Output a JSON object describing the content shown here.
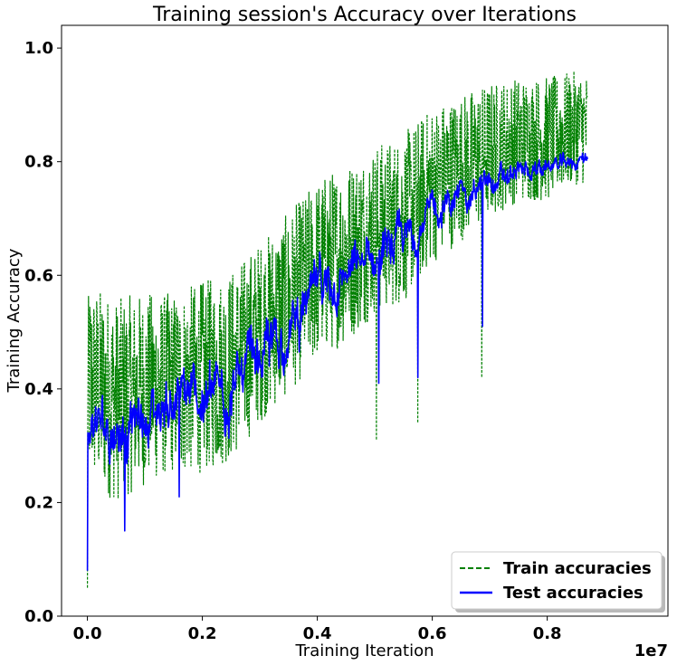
{
  "chart_data": {
    "type": "line",
    "title": "Training session's Accuracy over Iterations",
    "xlabel": "Training Iteration",
    "ylabel": "Training Accuracy",
    "x_offset_label": "1e7",
    "xlim": [
      -0.045,
      1.01
    ],
    "ylim": [
      0.0,
      1.04
    ],
    "xticks": [
      0.0,
      0.2,
      0.4,
      0.6,
      0.8
    ],
    "xtick_labels": [
      "0.0",
      "0.2",
      "0.4",
      "0.6",
      "0.8"
    ],
    "yticks": [
      0.0,
      0.2,
      0.4,
      0.6,
      0.8,
      1.0
    ],
    "ytick_labels": [
      "0.0",
      "0.2",
      "0.4",
      "0.6",
      "0.8",
      "1.0"
    ],
    "grid": false,
    "legend_position": "bottom-right",
    "series": [
      {
        "name": "Train accuracies",
        "color": "#008000",
        "style": "dashed",
        "x": [
          0.0,
          0.005,
          0.05,
          0.1,
          0.15,
          0.2,
          0.25,
          0.3,
          0.35,
          0.4,
          0.45,
          0.5,
          0.55,
          0.6,
          0.65,
          0.7,
          0.75,
          0.8,
          0.85,
          0.87
        ],
        "center": [
          0.4,
          0.41,
          0.38,
          0.4,
          0.41,
          0.42,
          0.44,
          0.5,
          0.55,
          0.61,
          0.64,
          0.68,
          0.7,
          0.76,
          0.79,
          0.82,
          0.84,
          0.84,
          0.86,
          0.86
        ],
        "spread": [
          0.15,
          0.18,
          0.18,
          0.17,
          0.16,
          0.17,
          0.17,
          0.16,
          0.16,
          0.16,
          0.16,
          0.15,
          0.15,
          0.14,
          0.13,
          0.12,
          0.11,
          0.11,
          0.1,
          0.1
        ],
        "min": 0.05,
        "max": 1.0,
        "dips": [
          {
            "x": 0.503,
            "y": 0.31
          },
          {
            "x": 0.575,
            "y": 0.34
          },
          {
            "x": 0.686,
            "y": 0.42
          },
          {
            "x": 0.0,
            "y": 0.05
          }
        ]
      },
      {
        "name": "Test accuracies",
        "color": "#0000ff",
        "style": "solid",
        "x": [
          0.0,
          0.005,
          0.05,
          0.1,
          0.15,
          0.2,
          0.25,
          0.3,
          0.35,
          0.4,
          0.45,
          0.5,
          0.55,
          0.6,
          0.65,
          0.7,
          0.75,
          0.8,
          0.85,
          0.87
        ],
        "center": [
          0.3,
          0.34,
          0.33,
          0.35,
          0.38,
          0.38,
          0.4,
          0.45,
          0.5,
          0.57,
          0.6,
          0.63,
          0.66,
          0.71,
          0.74,
          0.76,
          0.78,
          0.79,
          0.8,
          0.81
        ],
        "spread": [
          0.04,
          0.04,
          0.04,
          0.04,
          0.04,
          0.04,
          0.04,
          0.04,
          0.04,
          0.035,
          0.03,
          0.03,
          0.03,
          0.025,
          0.02,
          0.02,
          0.015,
          0.015,
          0.01,
          0.01
        ],
        "dips": [
          {
            "x": 0.0,
            "y": 0.08
          },
          {
            "x": 0.065,
            "y": 0.15
          },
          {
            "x": 0.507,
            "y": 0.41
          },
          {
            "x": 0.575,
            "y": 0.42
          },
          {
            "x": 0.687,
            "y": 0.51
          },
          {
            "x": 0.16,
            "y": 0.21
          }
        ]
      }
    ]
  }
}
